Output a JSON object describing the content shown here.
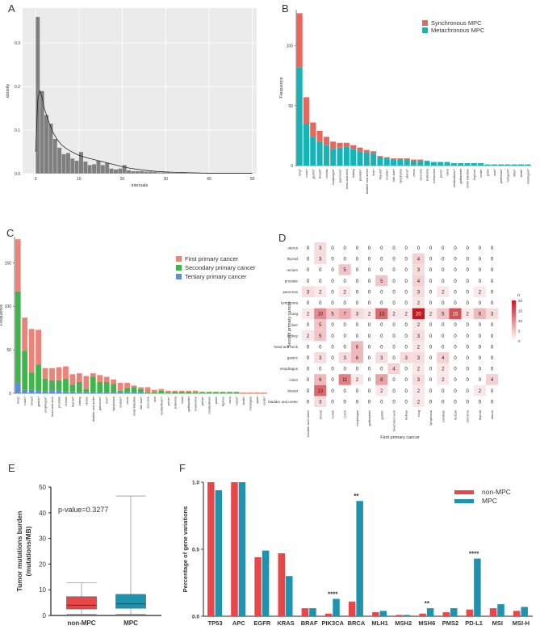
{
  "figure": {
    "panel_letters": [
      "A",
      "B",
      "C",
      "D",
      "E",
      "F"
    ]
  },
  "colors": {
    "synchronous": "#e8665c",
    "metachronous": "#18b3b6",
    "first_primary": "#ed8278",
    "second_primary": "#3fb54b",
    "tertiary": "#5b8ed4",
    "non_mpc": "#e8474a",
    "mpc": "#1f93ad",
    "heat_high": "#c8171e",
    "hist_bar": "#7f7f7f"
  },
  "chart_data": [
    {
      "panel": "A",
      "type": "histogram",
      "xlabel": "intervals",
      "ylabel": "density",
      "xlim": [
        -3,
        51
      ],
      "ylim": [
        0,
        0.38
      ],
      "x_ticks": [
        0,
        10,
        20,
        30,
        40,
        50
      ],
      "y_ticks": [
        0.0,
        0.1,
        0.2,
        0.3
      ],
      "y_tick_labels": [
        "0.0",
        "0.1",
        "0.2",
        "0.3"
      ],
      "grid": true,
      "bin_width": 1,
      "bin_starts": [
        0,
        1,
        2,
        3,
        4,
        5,
        6,
        7,
        8,
        9,
        10,
        11,
        12,
        13,
        14,
        15,
        16,
        17,
        18,
        19,
        20,
        21,
        22,
        23,
        24,
        25,
        26,
        27,
        28,
        29,
        30,
        31,
        32,
        33,
        34,
        35,
        36,
        37,
        38,
        39,
        40,
        41,
        42,
        43,
        44,
        45,
        46,
        47,
        48,
        49
      ],
      "values": [
        0.36,
        0.19,
        0.135,
        0.115,
        0.08,
        0.06,
        0.045,
        0.048,
        0.035,
        0.03,
        0.05,
        0.028,
        0.02,
        0.022,
        0.03,
        0.02,
        0.025,
        0.012,
        0.01,
        0.012,
        0.02,
        0.008,
        0.006,
        0.006,
        0.006,
        0.005,
        0.005,
        0.004,
        0.003,
        0.003,
        0.003,
        0.002,
        0.002,
        0.002,
        0.002,
        0.001,
        0.001,
        0.001,
        0.001,
        0.001,
        0.001,
        0.001,
        0.001,
        0.001,
        0.001,
        0.001,
        0.001,
        0.001,
        0.001,
        0.001
      ],
      "density_curve_x": [
        0,
        0.5,
        1,
        1.5,
        2,
        3,
        4,
        5,
        6,
        7,
        8,
        9,
        10,
        12,
        14,
        16,
        18,
        20,
        22,
        25,
        28,
        32,
        36,
        40,
        45,
        50
      ],
      "density_curve_y": [
        0.05,
        0.17,
        0.19,
        0.175,
        0.15,
        0.12,
        0.095,
        0.078,
        0.066,
        0.058,
        0.052,
        0.047,
        0.042,
        0.036,
        0.031,
        0.026,
        0.021,
        0.016,
        0.012,
        0.008,
        0.005,
        0.003,
        0.002,
        0.001,
        0.001,
        0.001
      ]
    },
    {
      "panel": "B",
      "type": "bar",
      "stacked": true,
      "ylabel": "Frequence",
      "ylim": [
        0,
        130
      ],
      "y_ticks": [
        0,
        50,
        100
      ],
      "legend_position": "top-right",
      "categories": [
        "lung*",
        "colon*",
        "gastric*",
        "breast*",
        "rectum",
        "esophagus*",
        "pancreas*",
        "head and neck",
        "kidney",
        "prostate*",
        "bladder and ureter",
        "liver*",
        "thyroid*",
        "ovarian*",
        "bile duct*",
        "lymphoma",
        "uterus*",
        "cervix",
        "sarcoma",
        "leukemia",
        "melanoma",
        "pelvic*",
        "vulva",
        "mediastinum*",
        "gallbladder",
        "small intestine",
        "thymus*",
        "uvula*",
        "penis",
        "anal*",
        "peritoneal*",
        "retroperit*",
        "other*",
        "testis*",
        "meningeal*"
      ],
      "series": [
        {
          "name": "Synchronous MPC",
          "values": [
            45,
            22,
            12,
            9,
            7,
            6,
            4,
            3,
            3,
            3,
            2,
            2,
            1,
            1,
            1,
            1,
            1,
            1,
            1,
            0,
            0,
            0,
            0,
            0,
            0,
            0,
            0,
            0,
            0,
            0,
            0,
            0,
            0,
            0,
            0
          ]
        },
        {
          "name": "Metachronous MPC",
          "values": [
            82,
            35,
            24,
            20,
            17,
            14,
            15,
            16,
            14,
            12,
            11,
            10,
            7,
            6,
            5,
            5,
            5,
            4,
            4,
            4,
            3,
            3,
            3,
            2,
            2,
            2,
            2,
            2,
            1,
            1,
            1,
            1,
            1,
            1,
            1
          ]
        }
      ]
    },
    {
      "panel": "C",
      "type": "bar",
      "stacked": true,
      "ylabel": "Frequence",
      "ylim": [
        0,
        180
      ],
      "y_ticks": [
        0,
        50,
        100,
        150
      ],
      "legend_position": "top-right",
      "categories": [
        "lung*",
        "colon*",
        "breast",
        "gastric*",
        "esophagus*",
        "head and neck",
        "prostate",
        "rectum",
        "thyroid*",
        "kidney",
        "uterus",
        "bladder and ureter",
        "pancreas*",
        "liver*",
        "lymphoma",
        "ovarian*",
        "cervix",
        "small intestine",
        "bile duct*",
        "sarcoma",
        "skin",
        "mediastinum*",
        "pelvic*",
        "leukemia",
        "brain",
        "gallbladder",
        "melanoma",
        "pelvis*",
        "mediastinum",
        "penis",
        "thymus",
        "vulva",
        "nasal*",
        "testis*",
        "meningeal",
        "spine",
        "uvula*"
      ],
      "series": [
        {
          "name": "First primary cancer",
          "values": [
            60,
            38,
            50,
            40,
            12,
            14,
            15,
            14,
            12,
            10,
            15,
            4,
            8,
            6,
            5,
            9,
            6,
            2,
            2,
            6,
            3,
            2,
            2,
            1,
            1,
            1,
            2,
            1,
            1,
            1,
            1,
            1,
            1,
            1,
            1,
            1,
            1
          ]
        },
        {
          "name": "Secondary primary cancer",
          "values": [
            105,
            45,
            20,
            30,
            15,
            12,
            12,
            15,
            8,
            12,
            4,
            18,
            12,
            12,
            10,
            2,
            5,
            6,
            4,
            1,
            1,
            3,
            1,
            2,
            2,
            2,
            1,
            1,
            1,
            1,
            1,
            1,
            1,
            0,
            0,
            0,
            0
          ]
        },
        {
          "name": "Tertiary primary cancer",
          "values": [
            12,
            4,
            4,
            3,
            2,
            3,
            3,
            2,
            2,
            1,
            1,
            1,
            1,
            1,
            1,
            1,
            1,
            1,
            1,
            0,
            0,
            0,
            0,
            0,
            0,
            0,
            0,
            0,
            0,
            0,
            0,
            0,
            0,
            0,
            0,
            0,
            0
          ]
        }
      ]
    },
    {
      "panel": "D",
      "type": "heatmap",
      "xlabel": "First primary cancer",
      "ylabel": "Second primary cancer",
      "colorbar_label": "n",
      "colorbar_ticks": [
        0,
        5,
        10,
        15,
        20
      ],
      "x_categories": [
        "bladder and ureter",
        "breast",
        "cervix",
        "colon",
        "esophagus",
        "gallbladder",
        "gastric",
        "head and neck",
        "kidney",
        "lung",
        "lymphoma",
        "prostate",
        "rectum",
        "sarcoma",
        "thyroid",
        "uterus"
      ],
      "y_categories": [
        "uterus",
        "thyroid",
        "rectum",
        "prostate",
        "pancreas",
        "lymphoma",
        "lung",
        "liver",
        "kidney",
        "head and neck",
        "gastric",
        "esophagus",
        "colon",
        "breast",
        "bladder and ureter"
      ],
      "matrix": [
        [
          0,
          3,
          0,
          0,
          0,
          0,
          0,
          0,
          0,
          0,
          0,
          0,
          0,
          0,
          0,
          0
        ],
        [
          0,
          3,
          0,
          0,
          0,
          0,
          0,
          0,
          0,
          4,
          0,
          0,
          0,
          0,
          0,
          0
        ],
        [
          0,
          0,
          0,
          5,
          0,
          0,
          0,
          0,
          0,
          3,
          0,
          0,
          0,
          0,
          0,
          0
        ],
        [
          0,
          0,
          0,
          0,
          0,
          0,
          5,
          0,
          0,
          4,
          0,
          0,
          0,
          0,
          0,
          0
        ],
        [
          3,
          2,
          0,
          2,
          0,
          0,
          0,
          0,
          0,
          3,
          0,
          2,
          0,
          0,
          2,
          0
        ],
        [
          0,
          0,
          0,
          0,
          0,
          0,
          0,
          0,
          0,
          2,
          0,
          0,
          0,
          0,
          0,
          0
        ],
        [
          2,
          10,
          5,
          7,
          3,
          2,
          13,
          2,
          2,
          20,
          2,
          5,
          15,
          2,
          6,
          3
        ],
        [
          0,
          5,
          0,
          0,
          0,
          0,
          0,
          0,
          0,
          2,
          0,
          0,
          0,
          0,
          0,
          0
        ],
        [
          2,
          5,
          0,
          0,
          0,
          0,
          0,
          0,
          0,
          3,
          0,
          0,
          0,
          0,
          0,
          0
        ],
        [
          0,
          0,
          0,
          0,
          6,
          0,
          0,
          0,
          0,
          2,
          0,
          0,
          0,
          0,
          0,
          0
        ],
        [
          0,
          3,
          0,
          3,
          6,
          0,
          3,
          0,
          3,
          3,
          0,
          4,
          0,
          0,
          0,
          0
        ],
        [
          0,
          0,
          0,
          0,
          0,
          0,
          0,
          4,
          0,
          2,
          0,
          2,
          0,
          0,
          0,
          0
        ],
        [
          0,
          6,
          0,
          11,
          2,
          0,
          8,
          0,
          0,
          3,
          0,
          2,
          0,
          0,
          0,
          4
        ],
        [
          0,
          13,
          0,
          0,
          0,
          0,
          2,
          0,
          0,
          2,
          0,
          0,
          0,
          0,
          2,
          0
        ],
        [
          0,
          3,
          0,
          0,
          0,
          0,
          0,
          0,
          0,
          2,
          0,
          0,
          0,
          0,
          0,
          0
        ]
      ]
    },
    {
      "panel": "E",
      "type": "boxplot",
      "ylabel": "Tumor mutations burden\n(mutations/MB)",
      "annotation": "p-value=0.3277",
      "ylim": [
        0,
        50
      ],
      "y_ticks": [
        0,
        10,
        20,
        30,
        40,
        50
      ],
      "categories": [
        "non-MPC",
        "MPC"
      ],
      "boxes": [
        {
          "whisker_low": 0.5,
          "q1": 2.5,
          "median": 4,
          "q3": 7.3,
          "whisker_high": 12.8
        },
        {
          "whisker_low": 0.5,
          "q1": 2.8,
          "median": 4.5,
          "q3": 8.2,
          "whisker_high": 46.5
        }
      ]
    },
    {
      "panel": "F",
      "type": "bar",
      "ylabel": "Percentage of gene variations",
      "ylim": [
        0,
        1.0
      ],
      "y_ticks": [
        0.0,
        0.5,
        1.0
      ],
      "y_tick_labels": [
        "0.0",
        "0.5",
        "1.0"
      ],
      "legend_position": "top-right",
      "categories": [
        "TP53",
        "APC",
        "EGFR",
        "KRAS",
        "BRAF",
        "PIK3CA",
        "BRCA",
        "MLH1",
        "MSH2",
        "MSH6",
        "PMS2",
        "PD-L1",
        "MSI",
        "MSI-H"
      ],
      "series": [
        {
          "name": "non-MPC",
          "values": [
            1.0,
            1.0,
            0.44,
            0.47,
            0.06,
            0.02,
            0.11,
            0.03,
            0.01,
            0.02,
            0.03,
            0.05,
            0.06,
            0.04
          ]
        },
        {
          "name": "MPC",
          "values": [
            0.94,
            1.0,
            0.49,
            0.3,
            0.06,
            0.13,
            0.86,
            0.04,
            0.01,
            0.06,
            0.06,
            0.43,
            0.09,
            0.07
          ]
        }
      ],
      "significance": [
        "",
        "",
        "",
        "",
        "",
        "****",
        "**",
        "",
        "",
        "**",
        "",
        "****",
        "",
        ""
      ]
    }
  ]
}
